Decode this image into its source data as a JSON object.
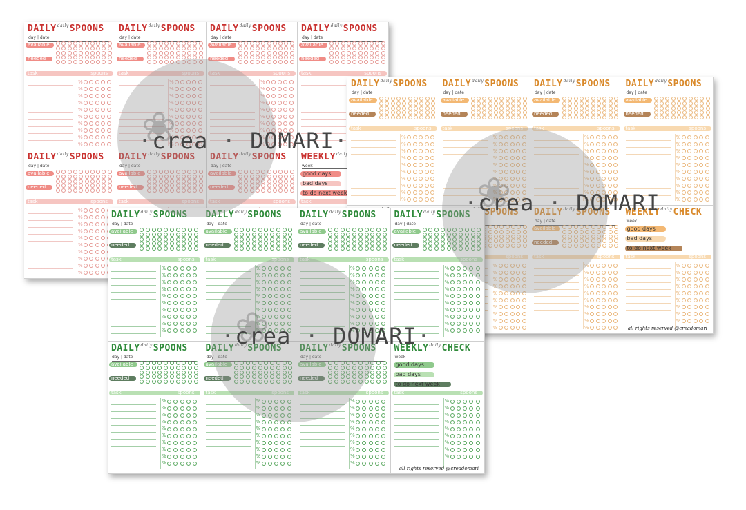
{
  "watermark": {
    "left": "crea",
    "right": "DOMARI",
    "separator": "·"
  },
  "labels": {
    "title_a": "DAILY",
    "title_b": "SPOONS",
    "title_small": "daily",
    "day_date": "day | date",
    "available": "available",
    "needed": "needed",
    "task": "task",
    "spoons": "spoons",
    "spoon": "spoon",
    "weekly_a": "WEEKLY",
    "weekly_b": "CHECK",
    "week": "week",
    "good_days": "good days",
    "bad_days": "bad days",
    "to_do": "to do next week",
    "percent": "%"
  },
  "footer": "all rights reserved @creadomari",
  "themes": {
    "red": {
      "accent": "#c9312f",
      "pill": "#f08c86",
      "light": "#f6c5c1",
      "line": "#e59a95"
    },
    "orange": {
      "accent": "#d9892a",
      "pill": "#f3b873",
      "light": "#f8d9b0",
      "line": "#eab77c",
      "brown": "#b48458"
    },
    "green": {
      "accent": "#2f8a3a",
      "pill": "#8fc98c",
      "light": "#b9e0b3",
      "line": "#5aa860",
      "dark": "#5e7d60"
    }
  }
}
